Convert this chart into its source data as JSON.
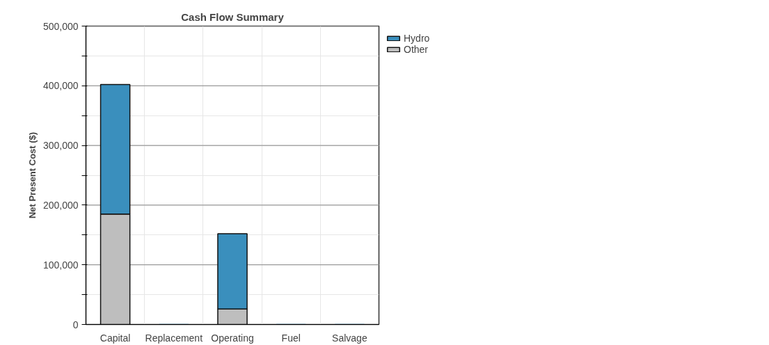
{
  "chart_data": {
    "type": "bar",
    "stacked": true,
    "title": "Cash Flow Summary",
    "ylabel": "Net Present Cost ($)",
    "categories": [
      "Capital",
      "Replacement",
      "Operating",
      "Fuel",
      "Salvage"
    ],
    "series": [
      {
        "name": "Other",
        "color": "#bebebe",
        "values": [
          185000,
          0,
          26000,
          0,
          0
        ]
      },
      {
        "name": "Hydro",
        "color": "#3a8fbd",
        "values": [
          217000,
          0,
          126000,
          0,
          0
        ]
      }
    ],
    "ylim": [
      0,
      500000
    ],
    "yticks": [
      {
        "value": 0,
        "label": "0"
      },
      {
        "value": 50000,
        "label": null
      },
      {
        "value": 100000,
        "label": "100,000"
      },
      {
        "value": 150000,
        "label": null
      },
      {
        "value": 200000,
        "label": "200,000"
      },
      {
        "value": 250000,
        "label": null
      },
      {
        "value": 300000,
        "label": "300,000"
      },
      {
        "value": 350000,
        "label": null
      },
      {
        "value": 400000,
        "label": "400,000"
      },
      {
        "value": 450000,
        "label": null
      },
      {
        "value": 500000,
        "label": "500,000"
      }
    ],
    "grid": true,
    "legend": "top right"
  }
}
